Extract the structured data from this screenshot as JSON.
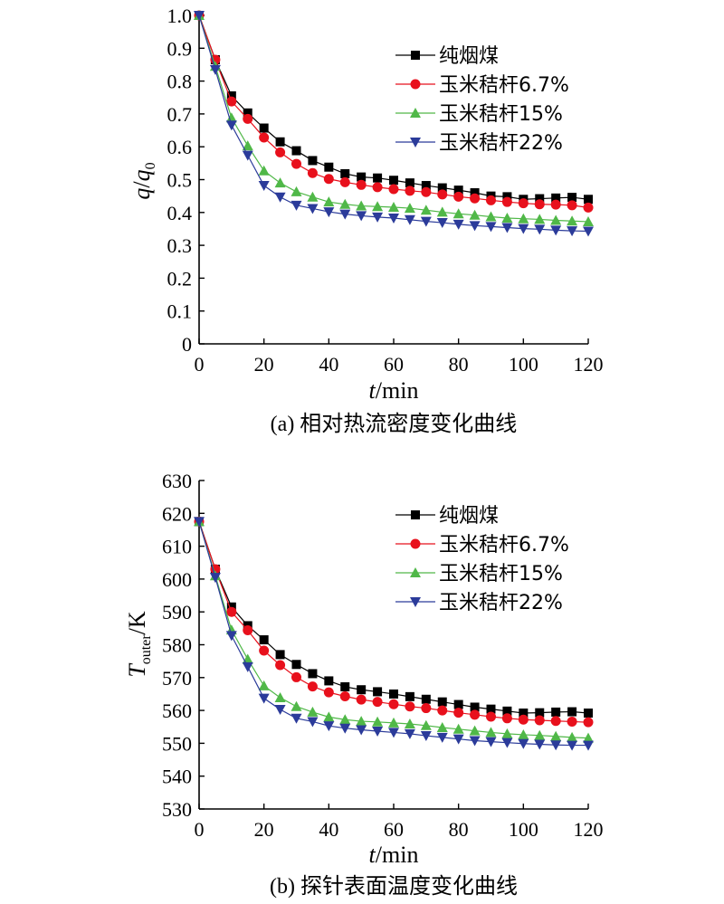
{
  "chart_data": [
    {
      "type": "line",
      "panel": "a",
      "caption": "(a) 相对热流密度变化曲线",
      "xlabel_italic": "t",
      "xlabel_rest": "/min",
      "ylabel_parts": [
        "q",
        "/",
        "q",
        "0"
      ],
      "xlim": [
        0,
        120
      ],
      "ylim": [
        0,
        1.0
      ],
      "xticks": [
        "0",
        "20",
        "40",
        "60",
        "80",
        "100",
        "120"
      ],
      "yticks": [
        "0",
        "0.1",
        "0.2",
        "0.3",
        "0.4",
        "0.5",
        "0.6",
        "0.7",
        "0.8",
        "0.9",
        "1.0"
      ],
      "legend_position": "top-right",
      "x": [
        0,
        5,
        10,
        15,
        20,
        25,
        30,
        35,
        40,
        45,
        50,
        55,
        60,
        65,
        70,
        75,
        80,
        85,
        90,
        95,
        100,
        105,
        110,
        115,
        120
      ],
      "series": [
        {
          "name": "纯烟煤",
          "color": "#000000",
          "marker": "square",
          "values": [
            1.0,
            0.865,
            0.755,
            0.703,
            0.657,
            0.615,
            0.588,
            0.558,
            0.538,
            0.518,
            0.508,
            0.505,
            0.498,
            0.49,
            0.482,
            0.475,
            0.468,
            0.46,
            0.45,
            0.448,
            0.44,
            0.442,
            0.444,
            0.446,
            0.44
          ]
        },
        {
          "name": "玉米秸杆6.7%",
          "color": "#e8101c",
          "marker": "circle",
          "values": [
            1.0,
            0.865,
            0.738,
            0.685,
            0.628,
            0.583,
            0.548,
            0.52,
            0.502,
            0.492,
            0.484,
            0.477,
            0.471,
            0.466,
            0.462,
            0.455,
            0.448,
            0.443,
            0.437,
            0.432,
            0.428,
            0.425,
            0.424,
            0.422,
            0.415
          ]
        },
        {
          "name": "玉米秸杆15%",
          "color": "#50b848",
          "marker": "triangle-up",
          "values": [
            1.0,
            0.845,
            0.688,
            0.603,
            0.527,
            0.49,
            0.463,
            0.447,
            0.432,
            0.425,
            0.42,
            0.418,
            0.416,
            0.413,
            0.407,
            0.401,
            0.396,
            0.392,
            0.387,
            0.383,
            0.381,
            0.379,
            0.376,
            0.374,
            0.372
          ]
        },
        {
          "name": "玉米秸杆22%",
          "color": "#2b3b9a",
          "marker": "triangle-down",
          "values": [
            1.0,
            0.835,
            0.666,
            0.574,
            0.482,
            0.447,
            0.422,
            0.412,
            0.402,
            0.395,
            0.39,
            0.386,
            0.383,
            0.378,
            0.373,
            0.369,
            0.364,
            0.36,
            0.357,
            0.354,
            0.351,
            0.349,
            0.346,
            0.344,
            0.343
          ]
        }
      ]
    },
    {
      "type": "line",
      "panel": "b",
      "caption": "(b) 探针表面温度变化曲线",
      "xlabel_italic": "t",
      "xlabel_rest": "/min",
      "ylabel_parts": [
        "T",
        "outer",
        "/K"
      ],
      "xlim": [
        0,
        120
      ],
      "ylim": [
        530,
        630
      ],
      "xticks": [
        "0",
        "20",
        "40",
        "60",
        "80",
        "100",
        "120"
      ],
      "yticks": [
        "530",
        "540",
        "550",
        "560",
        "570",
        "580",
        "590",
        "600",
        "610",
        "620",
        "630"
      ],
      "legend_position": "top-right",
      "x": [
        0,
        5,
        10,
        15,
        20,
        25,
        30,
        35,
        40,
        45,
        50,
        55,
        60,
        65,
        70,
        75,
        80,
        85,
        90,
        95,
        100,
        105,
        110,
        115,
        120
      ],
      "series": [
        {
          "name": "纯烟煤",
          "color": "#000000",
          "marker": "square",
          "values": [
            617.5,
            603,
            591.5,
            585.8,
            581.5,
            577,
            574,
            571.2,
            569,
            567.2,
            566.3,
            565.7,
            565,
            564.2,
            563.4,
            562.6,
            561.8,
            561,
            560.4,
            559.8,
            559.2,
            559.3,
            559.5,
            559.6,
            559.2
          ]
        },
        {
          "name": "玉米秸杆6.7%",
          "color": "#e8101c",
          "marker": "circle",
          "values": [
            617.5,
            603,
            590,
            584.4,
            578.2,
            573.8,
            570.1,
            567.3,
            565.5,
            564.3,
            563.3,
            562.6,
            561.9,
            561.2,
            560.7,
            560,
            559.3,
            558.7,
            558.1,
            557.6,
            557.2,
            557,
            556.8,
            556.6,
            556.4
          ]
        },
        {
          "name": "玉米秸杆15%",
          "color": "#50b848",
          "marker": "triangle-up",
          "values": [
            617.5,
            601,
            584.5,
            575.6,
            567.5,
            563.9,
            561.2,
            559.5,
            558,
            557.2,
            556.7,
            556.5,
            556.2,
            555.9,
            555.4,
            554.8,
            554.3,
            553.8,
            553.3,
            552.9,
            552.6,
            552.4,
            552.1,
            551.8,
            551.6
          ]
        },
        {
          "name": "玉米秸杆22%",
          "color": "#2b3b9a",
          "marker": "triangle-down",
          "values": [
            617.5,
            600.5,
            582.8,
            573.3,
            563.7,
            560.3,
            557.6,
            556.6,
            555.3,
            554.6,
            554.1,
            553.7,
            553.3,
            552.9,
            552.3,
            551.8,
            551.3,
            550.8,
            550.5,
            550.2,
            549.9,
            549.7,
            549.5,
            549.4,
            549.4
          ]
        }
      ]
    }
  ]
}
